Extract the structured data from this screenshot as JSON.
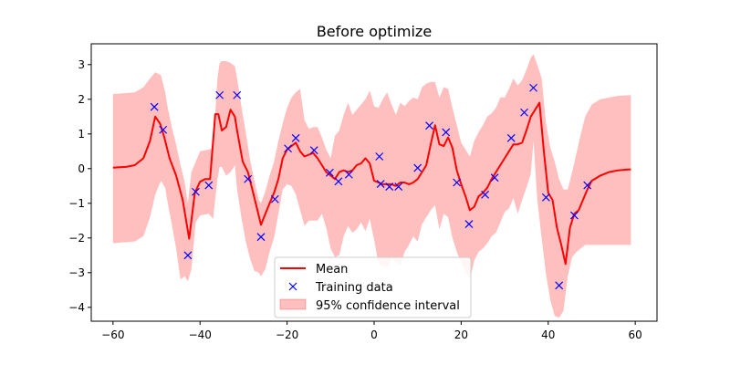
{
  "chart_data": {
    "type": "line",
    "title": "Before optimize",
    "xlabel": "",
    "ylabel": "",
    "xlim": [
      -65,
      65
    ],
    "ylim": [
      -4.4,
      3.6
    ],
    "xticks": [
      -60,
      -40,
      -20,
      0,
      20,
      40,
      60
    ],
    "yticks": [
      -4,
      -3,
      -2,
      -1,
      0,
      1,
      2,
      3
    ],
    "xtick_labels": [
      "−60",
      "−40",
      "−20",
      "0",
      "20",
      "40",
      "60"
    ],
    "ytick_labels": [
      "−4",
      "−3",
      "−2",
      "−1",
      "0",
      "1",
      "2",
      "3"
    ],
    "grid": false,
    "legend_position": "bottom-center",
    "series": [
      {
        "name": "Mean",
        "kind": "line",
        "color": "#ff0000",
        "x": [
          -60,
          -57,
          -55,
          -53,
          -51.5,
          -50.3,
          -49.2,
          -48.2,
          -47,
          -45.5,
          -44,
          -42.5,
          -41.2,
          -40,
          -38.8,
          -37.7,
          -36.5,
          -35.8,
          -35,
          -34,
          -33,
          -32,
          -31.5,
          -30.2,
          -29,
          -28,
          -27,
          -26,
          -25,
          -24,
          -23,
          -22,
          -21,
          -20,
          -19,
          -18,
          -17,
          -16,
          -15,
          -14,
          -13,
          -12,
          -11,
          -10,
          -9,
          -8,
          -7,
          -6,
          -5,
          -4,
          -3,
          -2,
          -1,
          0,
          1,
          2,
          3,
          4,
          5,
          6,
          7,
          8,
          9,
          10,
          11,
          12,
          13,
          14,
          15,
          16,
          17,
          18,
          19,
          20,
          21,
          22,
          23,
          24,
          25,
          26,
          27,
          28,
          29,
          30,
          31,
          32,
          33,
          34,
          35,
          36,
          37,
          38,
          39,
          40,
          41,
          42,
          43,
          44,
          45,
          46,
          47,
          48,
          49,
          50,
          52,
          54,
          56,
          58,
          59
        ],
        "y": [
          0.03,
          0.05,
          0.1,
          0.3,
          0.8,
          1.5,
          1.3,
          0.9,
          0.3,
          -0.2,
          -0.9,
          -2.02,
          -0.7,
          -0.38,
          -0.3,
          -0.3,
          1.57,
          1.57,
          1.1,
          1.2,
          1.7,
          1.5,
          1.1,
          0.2,
          -0.1,
          -0.6,
          -1.1,
          -1.62,
          -1.3,
          -1.0,
          -0.7,
          -0.3,
          0.3,
          0.55,
          0.65,
          0.75,
          0.5,
          0.35,
          0.4,
          0.45,
          0.3,
          0.1,
          -0.1,
          -0.2,
          -0.3,
          -0.1,
          -0.05,
          -0.1,
          -0.05,
          0.1,
          0.15,
          0.3,
          0.15,
          -0.35,
          -0.4,
          -0.45,
          -0.45,
          -0.45,
          -0.5,
          -0.4,
          -0.4,
          -0.45,
          -0.4,
          -0.3,
          -0.1,
          0.1,
          0.7,
          1.25,
          0.7,
          0.65,
          0.9,
          0.6,
          -0.05,
          -0.45,
          -0.8,
          -1.2,
          -1.1,
          -0.8,
          -0.7,
          -0.55,
          -0.3,
          -0.1,
          0.1,
          0.3,
          0.5,
          0.7,
          0.7,
          0.75,
          1.1,
          1.5,
          1.7,
          1.9,
          0.5,
          -0.7,
          -0.9,
          -1.7,
          -2.2,
          -2.75,
          -1.7,
          -1.3,
          -1.2,
          -0.9,
          -0.6,
          -0.35,
          -0.2,
          -0.1,
          -0.05,
          -0.03,
          -0.02
        ]
      },
      {
        "name": "Training data",
        "kind": "markers",
        "marker": "x",
        "color": "#0000ff",
        "x": [
          -50.5,
          -48.5,
          -42.8,
          -41,
          -38,
          -35.5,
          -31.5,
          -29,
          -26,
          -22.8,
          -19.8,
          -18,
          -13.8,
          -10.2,
          -8.2,
          -5.8,
          1.2,
          1.5,
          3.5,
          5.6,
          10,
          12.7,
          16.5,
          19,
          21.8,
          25.5,
          27.7,
          31.5,
          34.5,
          36.6,
          39.5,
          42.5,
          46,
          49
        ],
        "y": [
          1.78,
          1.12,
          -2.5,
          -0.67,
          -0.48,
          2.12,
          2.12,
          -0.3,
          -1.97,
          -0.88,
          0.58,
          0.88,
          0.53,
          -0.12,
          -0.37,
          -0.17,
          0.35,
          -0.44,
          -0.52,
          -0.52,
          0.02,
          1.24,
          1.05,
          -0.4,
          -1.6,
          -0.75,
          -0.26,
          0.88,
          1.62,
          2.33,
          -0.83,
          -3.37,
          -1.35,
          -0.48
        ]
      },
      {
        "name": "95% confidence interval",
        "kind": "band",
        "color": "#ff0000",
        "alpha": 0.25,
        "x": [
          -60,
          -55,
          -53,
          -51.5,
          -50.3,
          -49,
          -48,
          -47.5,
          -46.5,
          -45.5,
          -44.5,
          -43.5,
          -42.8,
          -42,
          -41,
          -40,
          -38,
          -37,
          -36,
          -35.5,
          -35,
          -34,
          -33,
          -32,
          -31.5,
          -30.5,
          -29.5,
          -28.5,
          -27.5,
          -26.5,
          -26,
          -25,
          -24,
          -23,
          -22,
          -21,
          -20,
          -19,
          -18,
          -17,
          -16,
          -15,
          -14,
          -13,
          -12,
          -11,
          -10,
          -9,
          -8,
          -7,
          -6,
          -5,
          -4,
          -3,
          -2,
          -1,
          0,
          1,
          2,
          3,
          4,
          5,
          6,
          7,
          8,
          9,
          10,
          11,
          12,
          13,
          14,
          15,
          16,
          17,
          18,
          19,
          20,
          21,
          22,
          23,
          24,
          25,
          26,
          27,
          28,
          29,
          30,
          31,
          32,
          33,
          34,
          35,
          36,
          36.6,
          37.5,
          38.5,
          39.5,
          40.5,
          41.5,
          42.5,
          43.5,
          44.5,
          45.5,
          46.5,
          47.5,
          48.5,
          50,
          52,
          54,
          56,
          59
        ],
        "upper": [
          2.15,
          2.2,
          2.35,
          2.6,
          2.78,
          2.7,
          2.2,
          1.8,
          1.2,
          0.7,
          0.1,
          -0.4,
          -1.0,
          -0.1,
          0.2,
          0.5,
          0.55,
          0.6,
          2.6,
          3.05,
          3.1,
          3.1,
          3.05,
          2.95,
          2.6,
          1.8,
          1.05,
          0.25,
          -0.35,
          -0.9,
          -1.0,
          -0.65,
          -0.2,
          0.2,
          0.8,
          1.3,
          1.75,
          2.05,
          2.2,
          2.3,
          1.4,
          1.15,
          1.2,
          1.2,
          0.9,
          0.55,
          0.3,
          0.95,
          1.1,
          1.55,
          1.9,
          1.55,
          1.7,
          1.85,
          2.0,
          2.25,
          1.8,
          1.75,
          2.0,
          2.2,
          1.85,
          1.55,
          1.9,
          1.8,
          1.95,
          2.05,
          2.0,
          2.35,
          2.45,
          2.5,
          2.5,
          2.05,
          2.35,
          2.3,
          1.75,
          1.25,
          0.75,
          0.55,
          0.35,
          0.8,
          1.05,
          1.25,
          1.5,
          1.6,
          1.75,
          2.05,
          2.05,
          2.3,
          2.6,
          2.4,
          2.55,
          2.85,
          3.2,
          3.3,
          3.0,
          2.6,
          1.3,
          0.6,
          0.2,
          -0.3,
          -0.6,
          -0.6,
          -0.1,
          0.45,
          1.0,
          1.5,
          1.85,
          2.0,
          2.05,
          2.1,
          2.12
        ],
        "lower": [
          -2.15,
          -2.1,
          -1.95,
          -1.4,
          -0.75,
          -0.35,
          -0.55,
          -0.95,
          -1.6,
          -2.3,
          -3.2,
          -3.1,
          -3.25,
          -2.9,
          -1.55,
          -1.35,
          -1.3,
          -1.45,
          -0.3,
          0.05,
          0.05,
          -0.2,
          -0.1,
          0.1,
          -0.6,
          -1.4,
          -2.1,
          -2.6,
          -2.95,
          -3.0,
          -3.1,
          -2.9,
          -2.4,
          -2.0,
          -1.3,
          -0.6,
          -0.45,
          -0.5,
          -0.75,
          -1.2,
          -1.65,
          -1.5,
          -1.5,
          -1.5,
          -1.3,
          -1.7,
          -2.3,
          -2.55,
          -2.5,
          -1.95,
          -1.65,
          -1.85,
          -1.75,
          -1.55,
          -1.8,
          -1.45,
          -2.05,
          -2.75,
          -2.8,
          -2.85,
          -2.6,
          -2.7,
          -2.8,
          -2.4,
          -2.2,
          -1.95,
          -2.1,
          -1.6,
          -1.4,
          -1.2,
          -1.05,
          -1.75,
          -1.3,
          -1.4,
          -2.0,
          -2.4,
          -2.7,
          -3.0,
          -3.2,
          -2.65,
          -2.4,
          -2.3,
          -2.15,
          -1.95,
          -1.85,
          -1.55,
          -1.25,
          -1.15,
          -0.85,
          -1.3,
          -0.9,
          -0.55,
          -0.15,
          0.8,
          -0.9,
          -2.0,
          -3.05,
          -3.8,
          -4.25,
          -4.3,
          -4.1,
          -3.1,
          -2.55,
          -2.4,
          -2.3,
          -2.2,
          -2.2,
          -2.2,
          -2.2,
          -2.2,
          -2.2
        ]
      }
    ]
  }
}
